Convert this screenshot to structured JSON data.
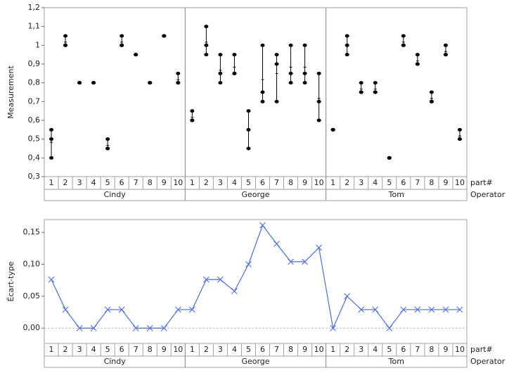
{
  "chart_data": [
    {
      "type": "variability",
      "y_label": "Measurement",
      "x_labels": [
        "part#",
        "Operator"
      ],
      "color": "#000000",
      "separators": true,
      "ylim": [
        0.3,
        1.2
      ],
      "yticks": [
        {
          "value": 0.3,
          "label": "0,3"
        },
        {
          "value": 0.4,
          "label": "0,4"
        },
        {
          "value": 0.5,
          "label": "0,5"
        },
        {
          "value": 0.6,
          "label": "0,6"
        },
        {
          "value": 0.7,
          "label": "0,7"
        },
        {
          "value": 0.8,
          "label": "0,8"
        },
        {
          "value": 0.9,
          "label": "0,9"
        },
        {
          "value": 1,
          "label": "1"
        },
        {
          "value": 1.1,
          "label": "1,1"
        },
        {
          "value": 1.2,
          "label": "1,2"
        }
      ],
      "groups": [
        {
          "name": "Cindy",
          "categories": [
            "1",
            "2",
            "3",
            "4",
            "5",
            "6",
            "7",
            "8",
            "9",
            "10"
          ],
          "values": [
            [
              0.55,
              0.5,
              0.4
            ],
            [
              1.05,
              1.0,
              1.0
            ],
            [
              0.8,
              0.8,
              0.8
            ],
            [
              0.8,
              0.8,
              0.8
            ],
            [
              0.5,
              0.45,
              0.45
            ],
            [
              1.05,
              1.0,
              1.0
            ],
            [
              0.95,
              0.95,
              0.95
            ],
            [
              0.8,
              0.8,
              0.8
            ],
            [
              1.05,
              1.05,
              1.05
            ],
            [
              0.85,
              0.8,
              0.8
            ]
          ]
        },
        {
          "name": "George",
          "categories": [
            "1",
            "2",
            "3",
            "4",
            "5",
            "6",
            "7",
            "8",
            "9",
            "10"
          ],
          "values": [
            [
              0.65,
              0.6,
              0.6
            ],
            [
              1.1,
              1.0,
              0.95
            ],
            [
              0.95,
              0.85,
              0.8
            ],
            [
              0.95,
              0.85,
              0.85
            ],
            [
              0.65,
              0.55,
              0.45
            ],
            [
              1.0,
              0.75,
              0.7
            ],
            [
              0.95,
              0.9,
              0.7
            ],
            [
              1.0,
              0.85,
              0.8
            ],
            [
              1.0,
              0.85,
              0.8
            ],
            [
              0.85,
              0.7,
              0.6
            ]
          ]
        },
        {
          "name": "Tom",
          "categories": [
            "1",
            "2",
            "3",
            "4",
            "5",
            "6",
            "7",
            "8",
            "9",
            "10"
          ],
          "values": [
            [
              0.55,
              0.55,
              0.55
            ],
            [
              1.05,
              1.0,
              0.95
            ],
            [
              0.8,
              0.75,
              0.75
            ],
            [
              0.8,
              0.75,
              0.75
            ],
            [
              0.4,
              0.4,
              0.4
            ],
            [
              1.05,
              1.0,
              1.0
            ],
            [
              0.95,
              0.9,
              0.9
            ],
            [
              0.75,
              0.7,
              0.7
            ],
            [
              1.0,
              0.95,
              0.95
            ],
            [
              0.55,
              0.5,
              0.5
            ]
          ]
        }
      ]
    },
    {
      "type": "line",
      "y_label": "Écart-type",
      "x_labels": [
        "part#",
        "Operator"
      ],
      "color": "#4a6fe3",
      "separators": false,
      "ylim": [
        -0.024,
        0.17
      ],
      "reference_line": 0,
      "yticks": [
        {
          "value": 0,
          "label": "0,00"
        },
        {
          "value": 0.05,
          "label": "0,05"
        },
        {
          "value": 0.1,
          "label": "0,10"
        },
        {
          "value": 0.15,
          "label": "0,15"
        }
      ],
      "groups": [
        {
          "name": "Cindy",
          "categories": [
            "1",
            "2",
            "3",
            "4",
            "5",
            "6",
            "7",
            "8",
            "9",
            "10"
          ],
          "values": [
            0.076,
            0.029,
            0,
            0,
            0.029,
            0.029,
            0,
            0,
            0,
            0.029
          ]
        },
        {
          "name": "George",
          "categories": [
            "1",
            "2",
            "3",
            "4",
            "5",
            "6",
            "7",
            "8",
            "9",
            "10"
          ],
          "values": [
            0.029,
            0.076,
            0.076,
            0.058,
            0.1,
            0.161,
            0.132,
            0.104,
            0.104,
            0.126
          ]
        },
        {
          "name": "Tom",
          "categories": [
            "1",
            "2",
            "3",
            "4",
            "5",
            "6",
            "7",
            "8",
            "9",
            "10"
          ],
          "values": [
            0,
            0.05,
            0.029,
            0.029,
            0,
            0.029,
            0.029,
            0.029,
            0.029,
            0.029
          ]
        }
      ]
    }
  ]
}
